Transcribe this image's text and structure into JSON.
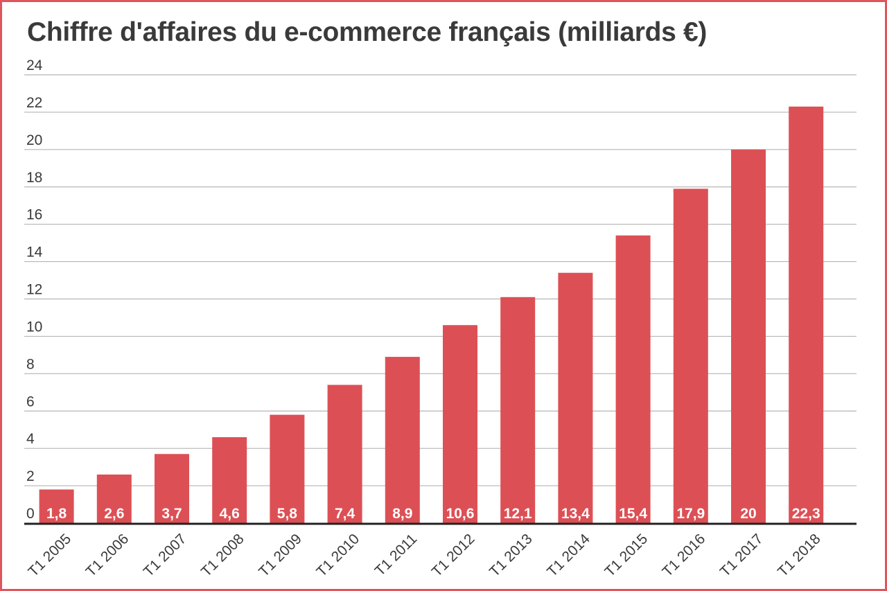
{
  "colors": {
    "bar": "#dc5055",
    "border": "#e0555b",
    "grid": "#b5b5b5",
    "axis": "#222222",
    "text": "#3a3a3a",
    "data_label": "#ffffff"
  },
  "chart_data": {
    "type": "bar",
    "title": "Chiffre d'affaires du e-commerce français (milliards €)",
    "xlabel": "",
    "ylabel": "",
    "categories": [
      "T1 2005",
      "T1 2006",
      "T1 2007",
      "T1 2008",
      "T1 2009",
      "T1 2010",
      "T1 2011",
      "T1 2012",
      "T1 2013",
      "T1 2014",
      "T1 2015",
      "T1 2016",
      "T1 2017",
      "T1 2018"
    ],
    "values": [
      1.8,
      2.6,
      3.7,
      4.6,
      5.8,
      7.4,
      8.9,
      10.6,
      12.1,
      13.4,
      15.4,
      17.9,
      20,
      22.3
    ],
    "data_labels": [
      "1,8",
      "2,6",
      "3,7",
      "4,6",
      "5,8",
      "7,4",
      "8,9",
      "10,6",
      "12,1",
      "13,4",
      "15,4",
      "17,9",
      "20",
      "22,3"
    ],
    "ylim": [
      0,
      24
    ],
    "yticks": [
      0,
      2,
      4,
      6,
      8,
      10,
      12,
      14,
      16,
      18,
      20,
      22,
      24
    ],
    "grid": true,
    "legend": "none"
  }
}
